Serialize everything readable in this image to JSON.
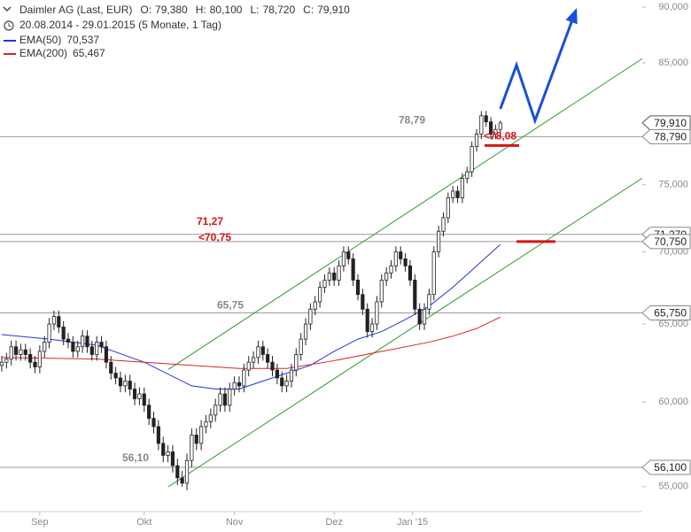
{
  "chart_data": {
    "type": "candlestick",
    "title": "Daimler AG (Last, EUR)",
    "header_stats": [
      {
        "name": "O:",
        "value": 79.38,
        "label": "79,380"
      },
      {
        "name": "H:",
        "value": 80.1,
        "label": "80,100"
      },
      {
        "name": "L:",
        "value": 78.72,
        "label": "78,720"
      },
      {
        "name": "C:",
        "value": 79.91,
        "label": "79,910"
      }
    ],
    "subtitle": "20.08.2014 - 29.01.2015 (5 Monate, 1 Tag)",
    "log_scale": true,
    "ylim": [
      54,
      90.5
    ],
    "yticks": [
      {
        "value": 55,
        "label": "55,000"
      },
      {
        "value": 60,
        "label": "60,000"
      },
      {
        "value": 65,
        "label": "65,000"
      },
      {
        "value": 70,
        "label": "70,000"
      },
      {
        "value": 75,
        "label": "75,000"
      },
      {
        "value": 85,
        "label": "85,000"
      },
      {
        "value": 90,
        "label": "90,000"
      }
    ],
    "xlim": [
      -0.37,
      145.15
    ],
    "xticks": [
      {
        "value": 8,
        "label": "Sep"
      },
      {
        "value": 30,
        "label": "Okt"
      },
      {
        "value": 49,
        "label": "Nov"
      },
      {
        "value": 70,
        "label": "Dez"
      },
      {
        "value": 86.5,
        "label": "Jan '15"
      }
    ],
    "candles": {
      "open": [
        62.3,
        62.5,
        62.7,
        63.5,
        63.0,
        63.3,
        63.0,
        62.5,
        62.2,
        63.2,
        63.8,
        65.0,
        65.5,
        64.8,
        64.0,
        63.8,
        63.2,
        63.5,
        64.2,
        63.5,
        63.0,
        63.8,
        63.5,
        62.5,
        61.8,
        61.5,
        61.0,
        61.3,
        60.8,
        60.2,
        60.5,
        59.8,
        59.0,
        58.5,
        57.5,
        56.8,
        57.0,
        56.2,
        55.5,
        55.2,
        56.5,
        58.0,
        57.5,
        58.5,
        58.8,
        59.2,
        59.8,
        60.5,
        59.8,
        60.8,
        61.2,
        61.0,
        62.0,
        62.5,
        62.8,
        63.5,
        63.0,
        62.5,
        62.0,
        61.5,
        61.0,
        61.3,
        62.0,
        63.0,
        64.0,
        65.0,
        66.0,
        66.5,
        67.5,
        68.0,
        68.5,
        68.0,
        69.0,
        70.0,
        69.5,
        68.0,
        67.0,
        66.0,
        64.5,
        65.0,
        66.5,
        68.0,
        68.5,
        69.0,
        70.0,
        69.5,
        69.0,
        68.0,
        66.0,
        65.0,
        66.0,
        67.0,
        70.0,
        71.5,
        72.5,
        74.0,
        74.5,
        74.0,
        75.5,
        76.0,
        78.0,
        79.0,
        80.5,
        80.0,
        79.0,
        79.38
      ],
      "high": [
        62.9,
        63.1,
        63.9,
        63.9,
        63.7,
        63.7,
        63.4,
        62.9,
        63.6,
        64.2,
        65.4,
        65.9,
        65.9,
        65.2,
        64.4,
        64.2,
        63.9,
        64.6,
        64.6,
        63.9,
        64.2,
        64.2,
        63.9,
        62.9,
        62.2,
        61.9,
        61.7,
        61.7,
        61.2,
        60.9,
        60.9,
        60.2,
        59.4,
        58.9,
        57.9,
        57.4,
        57.4,
        56.6,
        55.9,
        56.9,
        58.4,
        58.4,
        58.9,
        59.2,
        59.6,
        60.2,
        60.9,
        60.9,
        61.2,
        61.6,
        61.6,
        62.4,
        62.9,
        63.2,
        63.9,
        63.9,
        63.4,
        62.9,
        62.4,
        61.9,
        61.7,
        62.4,
        63.4,
        64.4,
        65.4,
        66.4,
        66.9,
        67.9,
        68.4,
        68.9,
        68.9,
        69.4,
        70.4,
        70.4,
        69.9,
        68.4,
        67.4,
        66.4,
        65.4,
        66.9,
        68.4,
        68.9,
        69.4,
        70.4,
        70.4,
        69.9,
        69.4,
        68.4,
        66.4,
        66.4,
        67.4,
        70.4,
        71.9,
        72.9,
        74.4,
        74.9,
        74.9,
        75.9,
        76.4,
        78.4,
        79.4,
        80.9,
        80.9,
        80.4,
        79.78,
        80.1
      ],
      "low": [
        61.9,
        62.1,
        62.3,
        62.6,
        62.6,
        62.6,
        62.1,
        61.8,
        61.8,
        62.8,
        63.4,
        64.6,
        64.4,
        63.6,
        63.4,
        62.8,
        62.8,
        63.1,
        63.1,
        62.6,
        62.6,
        63.1,
        62.1,
        61.4,
        61.1,
        60.6,
        60.6,
        60.4,
        59.8,
        59.8,
        59.4,
        58.6,
        58.1,
        57.1,
        56.4,
        56.4,
        55.8,
        55.1,
        55.0,
        54.8,
        56.1,
        57.1,
        57.1,
        58.1,
        58.4,
        58.8,
        59.4,
        59.4,
        59.4,
        60.4,
        60.6,
        60.6,
        61.6,
        62.1,
        62.4,
        62.6,
        62.1,
        61.6,
        61.1,
        60.6,
        60.6,
        60.9,
        61.6,
        62.6,
        63.6,
        64.6,
        65.6,
        66.1,
        67.1,
        67.6,
        67.6,
        67.6,
        68.6,
        69.1,
        67.6,
        66.6,
        65.6,
        64.1,
        64.1,
        64.6,
        66.1,
        67.6,
        68.1,
        68.6,
        69.1,
        68.6,
        67.6,
        65.6,
        64.6,
        64.6,
        65.6,
        66.6,
        69.6,
        71.1,
        72.1,
        73.6,
        73.6,
        73.6,
        75.1,
        75.6,
        77.6,
        78.6,
        79.6,
        78.6,
        78.6,
        78.72
      ],
      "close": [
        62.5,
        62.7,
        63.5,
        63.0,
        63.3,
        63.0,
        62.5,
        62.2,
        63.2,
        63.8,
        65.0,
        65.5,
        64.8,
        64.0,
        63.8,
        63.2,
        63.5,
        64.2,
        63.5,
        63.0,
        63.8,
        63.5,
        62.5,
        61.8,
        61.5,
        61.0,
        61.3,
        60.8,
        60.2,
        60.5,
        59.8,
        59.0,
        58.5,
        57.5,
        56.8,
        57.0,
        56.2,
        55.5,
        55.2,
        56.5,
        58.0,
        57.5,
        58.5,
        58.8,
        59.2,
        59.8,
        60.5,
        59.8,
        60.8,
        61.2,
        61.0,
        62.0,
        62.5,
        62.8,
        63.5,
        63.0,
        62.5,
        62.0,
        61.5,
        61.0,
        61.3,
        62.0,
        63.0,
        64.0,
        65.0,
        66.0,
        66.5,
        67.5,
        68.0,
        68.5,
        68.0,
        69.0,
        70.0,
        69.5,
        68.0,
        67.0,
        66.0,
        64.5,
        65.0,
        66.5,
        68.0,
        68.5,
        69.0,
        70.0,
        69.5,
        69.0,
        68.0,
        66.0,
        65.0,
        66.0,
        67.0,
        70.0,
        71.5,
        72.5,
        74.0,
        74.5,
        74.0,
        75.5,
        76.0,
        78.0,
        79.0,
        80.5,
        80.0,
        79.0,
        79.38,
        79.91
      ]
    },
    "series": [
      {
        "name": "EMA(50)",
        "color": "#2233dd",
        "value_label": "70,537",
        "x": [
          0,
          10,
          20,
          30,
          40,
          45,
          50,
          55,
          60,
          65,
          70,
          75,
          80,
          85,
          90,
          95,
          100,
          105
        ],
        "values": [
          64.3,
          64.0,
          63.6,
          62.5,
          61.0,
          60.8,
          60.8,
          61.3,
          61.8,
          62.3,
          63.2,
          64.0,
          64.5,
          65.3,
          66.2,
          67.5,
          69.0,
          70.537
        ]
      },
      {
        "name": "EMA(200)",
        "color": "#dd2222",
        "value_label": "65,467",
        "x": [
          0,
          20,
          40,
          50,
          60,
          70,
          80,
          90,
          95,
          100,
          105
        ],
        "values": [
          62.8,
          62.7,
          62.3,
          62.1,
          62.1,
          62.6,
          63.2,
          63.8,
          64.2,
          64.7,
          65.467
        ]
      }
    ],
    "channel_lines": [
      {
        "color": "#2e9a2e",
        "x": [
          35.1,
          145.1
        ],
        "values": [
          62.04,
          88.2
        ]
      },
      {
        "color": "#2e9a2e",
        "x": [
          35.1,
          145.1
        ],
        "values": [
          55.0,
          78.0
        ]
      }
    ],
    "projection": {
      "color": "#1a4fd8",
      "x": [
        105,
        108.4,
        112.3,
        120.9
      ],
      "values": [
        81.07,
        84.8,
        80.1,
        89.7
      ]
    },
    "levels": [
      {
        "value": 78.79,
        "label": "78,79",
        "box": "78,790",
        "color": "#888888"
      },
      {
        "value": 71.27,
        "label": "71,27",
        "box": "71,270",
        "color": "#dd1111"
      },
      {
        "value": 70.75,
        "label": "<70,75",
        "box": "70,750",
        "color": "#dd1111"
      },
      {
        "value": 65.75,
        "label": "65,75",
        "box": "65,750",
        "color": "#888888"
      },
      {
        "value": 56.1,
        "label": "56,10",
        "box": "56,100",
        "color": "#888888"
      }
    ],
    "last_price": {
      "value": 79.91,
      "label": "79,910"
    },
    "marker": {
      "value": 78.08,
      "label": "<78,08",
      "color": "#dd1111"
    }
  }
}
